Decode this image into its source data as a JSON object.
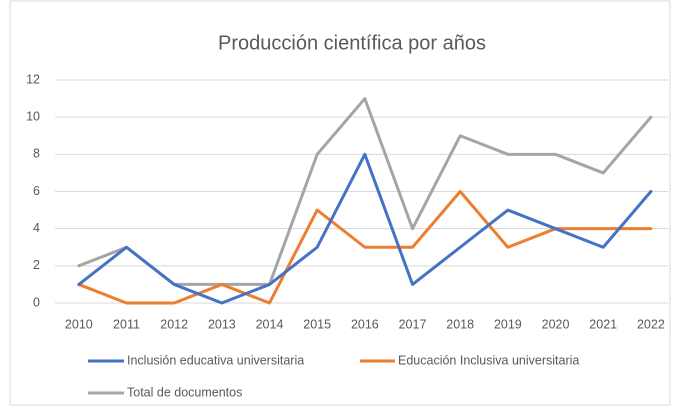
{
  "chart_data": {
    "type": "line",
    "title": "Producción científica por años",
    "categories": [
      "2010",
      "2011",
      "2012",
      "2013",
      "2014",
      "2015",
      "2016",
      "2017",
      "2018",
      "2019",
      "2020",
      "2021",
      "2022"
    ],
    "series": [
      {
        "name": "Inclusión educativa universitaria",
        "color": "#4472c4",
        "values": [
          1,
          3,
          1,
          0,
          1,
          3,
          8,
          1,
          3,
          5,
          4,
          3,
          6
        ]
      },
      {
        "name": "Educación Inclusiva universitaria",
        "color": "#ed7d31",
        "values": [
          1,
          0,
          0,
          1,
          0,
          5,
          3,
          3,
          6,
          3,
          4,
          4,
          4
        ]
      },
      {
        "name": "Total de documentos",
        "color": "#a5a5a5",
        "values": [
          2,
          3,
          1,
          1,
          1,
          8,
          11,
          4,
          9,
          8,
          8,
          7,
          10
        ]
      }
    ],
    "ylim": [
      0,
      12
    ],
    "yticks": [
      0,
      2,
      4,
      6,
      8,
      10,
      12
    ],
    "grid": true,
    "legend": "bottom"
  }
}
